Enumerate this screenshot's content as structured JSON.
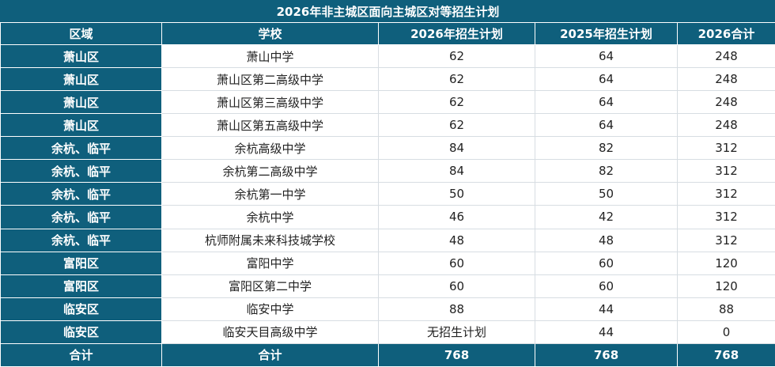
{
  "title": "2026年非主城区面向主城区对等招生计划",
  "headers": [
    "区域",
    "学校",
    "2026年招生计划",
    "2025年招生计划",
    "2026合计"
  ],
  "rows": [
    {
      "region": "萧山区",
      "school": "萧山中学",
      "plan2026": "62",
      "plan2025": "64",
      "total2026": "248"
    },
    {
      "region": "萧山区",
      "school": "萧山区第二高级中学",
      "plan2026": "62",
      "plan2025": "64",
      "total2026": "248"
    },
    {
      "region": "萧山区",
      "school": "萧山区第三高级中学",
      "plan2026": "62",
      "plan2025": "64",
      "total2026": "248"
    },
    {
      "region": "萧山区",
      "school": "萧山区第五高级中学",
      "plan2026": "62",
      "plan2025": "64",
      "total2026": "248"
    },
    {
      "region": "余杭、临平",
      "school": "余杭高级中学",
      "plan2026": "84",
      "plan2025": "82",
      "total2026": "312"
    },
    {
      "region": "余杭、临平",
      "school": "余杭第二高级中学",
      "plan2026": "84",
      "plan2025": "82",
      "total2026": "312"
    },
    {
      "region": "余杭、临平",
      "school": "余杭第一中学",
      "plan2026": "50",
      "plan2025": "50",
      "total2026": "312"
    },
    {
      "region": "余杭、临平",
      "school": "余杭中学",
      "plan2026": "46",
      "plan2025": "42",
      "total2026": "312"
    },
    {
      "region": "余杭、临平",
      "school": "杭师附属未来科技城学校",
      "plan2026": "48",
      "plan2025": "48",
      "total2026": "312"
    },
    {
      "region": "富阳区",
      "school": "富阳中学",
      "plan2026": "60",
      "plan2025": "60",
      "total2026": "120"
    },
    {
      "region": "富阳区",
      "school": "富阳区第二中学",
      "plan2026": "60",
      "plan2025": "60",
      "total2026": "120"
    },
    {
      "region": "临安区",
      "school": "临安中学",
      "plan2026": "88",
      "plan2025": "44",
      "total2026": "88"
    },
    {
      "region": "临安区",
      "school": "临安天目高级中学",
      "plan2026": "无招生计划",
      "plan2025": "44",
      "total2026": "0"
    }
  ],
  "totals": {
    "region": "合计",
    "school": "合计",
    "plan2026": "768",
    "plan2025": "768",
    "total2026": "768"
  },
  "colors": {
    "header_bg": "#0f5f7c",
    "header_text": "#ffffff",
    "grid": "#d7dde2"
  }
}
